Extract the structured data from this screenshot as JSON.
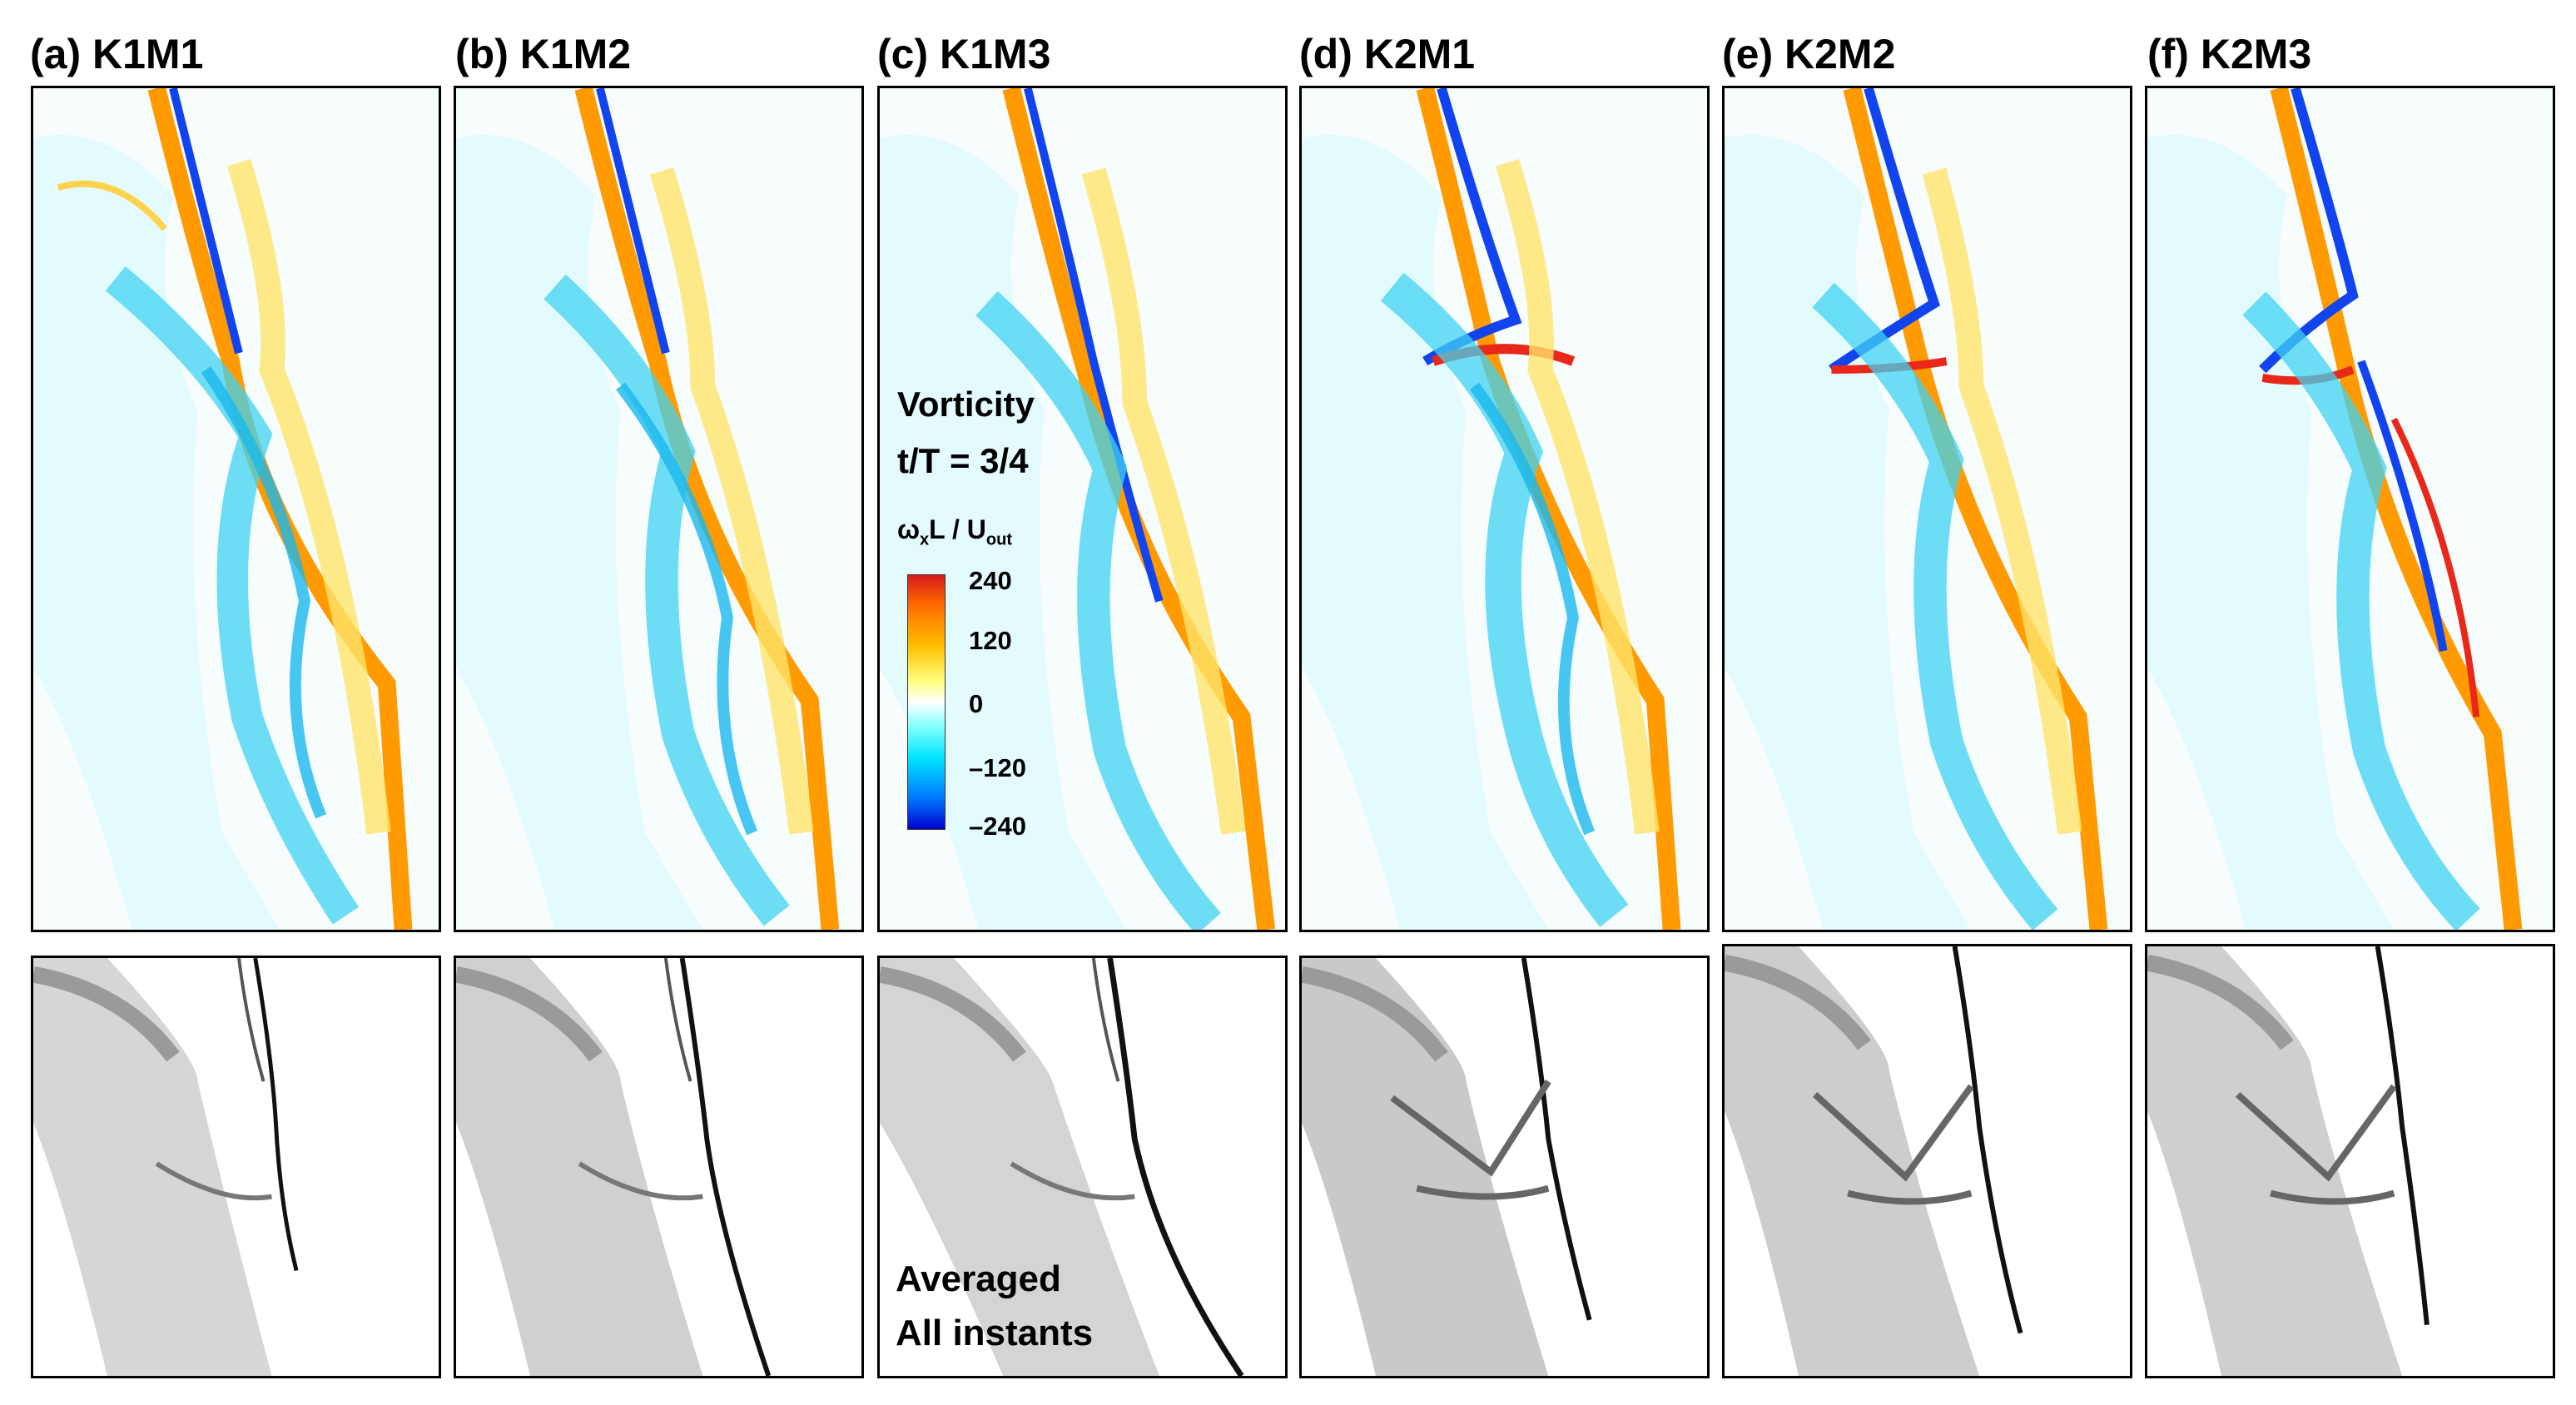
{
  "panels": [
    {
      "label": "(a) K1M1"
    },
    {
      "label": "(b) K1M2"
    },
    {
      "label": "(c) K1M3"
    },
    {
      "label": "(d) K2M1"
    },
    {
      "label": "(e) K2M2"
    },
    {
      "label": "(f) K2M3"
    }
  ],
  "legend": {
    "title_line1": "Vorticity",
    "title_line2": "t/T = 3/4",
    "variable_main": "ω",
    "variable_sub_x": "x",
    "variable_mid": "L / U",
    "variable_sub_out": "out",
    "ticks": [
      "240",
      "120",
      "0",
      "–120",
      "–240"
    ],
    "colors": {
      "max": "#d7191c",
      "zero": "#ffffff",
      "min": "#0000cc"
    }
  },
  "averaged_note": {
    "line1": "Averaged",
    "line2": "All instants"
  }
}
